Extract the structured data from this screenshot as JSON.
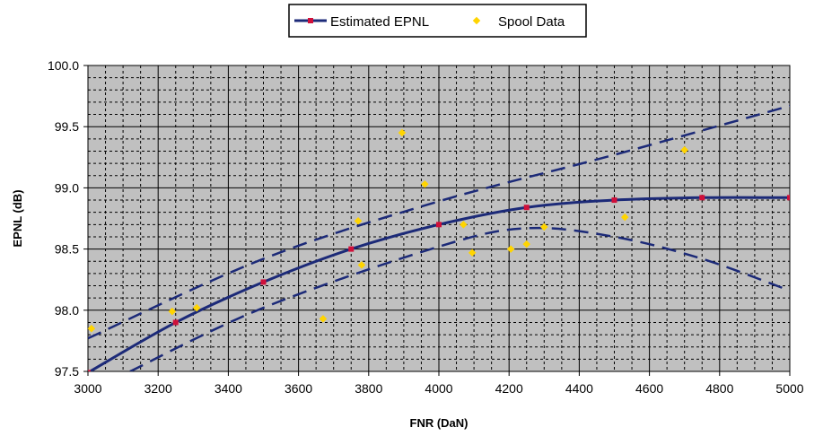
{
  "chart_data": {
    "type": "line",
    "title": "",
    "xlabel": "FNR (DaN)",
    "ylabel": "EPNL (dB)",
    "xlim": [
      3000,
      5000
    ],
    "ylim": [
      97.5,
      100.0
    ],
    "x_ticks": [
      "3000",
      "3200",
      "3400",
      "3600",
      "3800",
      "4000",
      "4200",
      "4400",
      "4600",
      "4800",
      "5000"
    ],
    "y_ticks": [
      "100.0",
      "99.5",
      "99.0",
      "98.5",
      "98.0",
      "97.5"
    ],
    "grid": true,
    "legend_position": "top-center",
    "plot_background": "#c0c0c0",
    "series": [
      {
        "name": "Estimated EPNL",
        "kind": "line-with-markers",
        "color": "#1c2a78",
        "marker_color": "#d0103a",
        "x": [
          3000,
          3250,
          3500,
          3750,
          4000,
          4250,
          4500,
          4750,
          5000
        ],
        "y": [
          97.49,
          97.9,
          98.23,
          98.5,
          98.7,
          98.84,
          98.9,
          98.92,
          98.92
        ]
      },
      {
        "name": "Spool Data",
        "kind": "scatter",
        "color": "#ffd400",
        "x": [
          3010,
          3240,
          3310,
          3670,
          3770,
          3780,
          3895,
          3960,
          4070,
          4095,
          4205,
          4250,
          4300,
          4530,
          4700
        ],
        "y": [
          97.85,
          97.99,
          98.02,
          97.93,
          98.73,
          98.37,
          99.45,
          99.03,
          98.7,
          98.47,
          98.5,
          98.54,
          98.68,
          98.76,
          99.31
        ]
      },
      {
        "kind": "dashed-bound",
        "color": "#1c2a78",
        "x": [
          3000,
          3500,
          4000,
          4500,
          5000
        ],
        "y": [
          97.77,
          98.42,
          98.89,
          99.27,
          99.67
        ]
      },
      {
        "kind": "dashed-bound",
        "color": "#1c2a78",
        "x": [
          3120,
          3500,
          4000,
          4250,
          4500,
          4750,
          5000
        ],
        "y": [
          97.5,
          98.02,
          98.52,
          98.67,
          98.6,
          98.42,
          98.16
        ]
      }
    ]
  }
}
